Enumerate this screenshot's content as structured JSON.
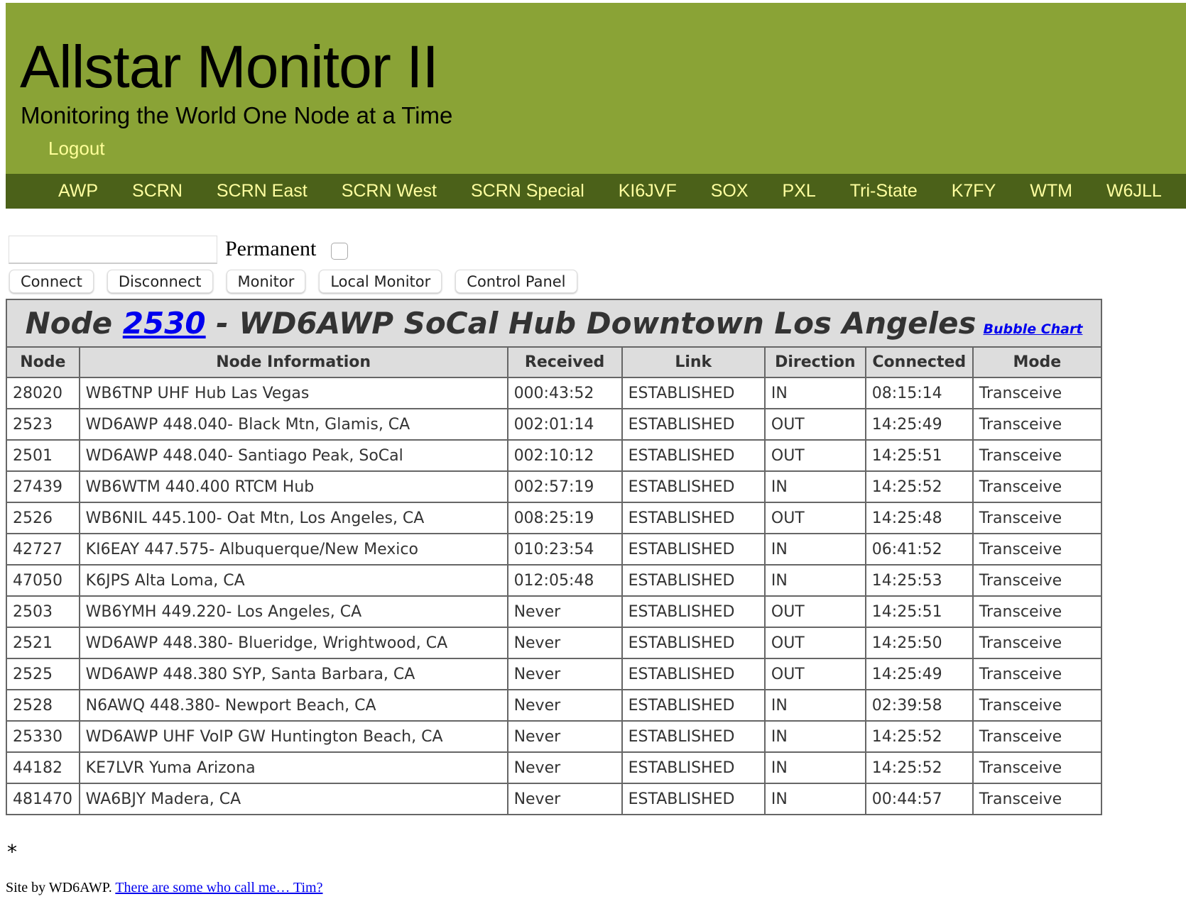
{
  "header": {
    "title": "Allstar Monitor II",
    "subtitle": "Monitoring the World One Node at a Time",
    "logout": "Logout",
    "bg": "#8aa336"
  },
  "nav": {
    "items": [
      "AWP",
      "SCRN",
      "SCRN East",
      "SCRN West",
      "SCRN Special",
      "KI6JVF",
      "SOX",
      "PXL",
      "Tri-State",
      "K7FY",
      "WTM",
      "W6JLL"
    ],
    "bg": "#4b6119"
  },
  "controls": {
    "node_input_value": "",
    "permanent_label": "Permanent",
    "permanent_checked": false,
    "buttons": [
      "Connect",
      "Disconnect",
      "Monitor",
      "Local Monitor",
      "Control Panel"
    ]
  },
  "table": {
    "caption_prefix": "Node ",
    "node_number": "2530",
    "caption_suffix": " - WD6AWP SoCal Hub Downtown Los Angeles",
    "bubble_chart": "Bubble Chart",
    "columns": [
      "Node",
      "Node Information",
      "Received",
      "Link",
      "Direction",
      "Connected",
      "Mode"
    ],
    "rows": [
      [
        "28020",
        "WB6TNP UHF Hub Las Vegas",
        "000:43:52",
        "ESTABLISHED",
        "IN",
        "08:15:14",
        "Transceive"
      ],
      [
        "2523",
        "WD6AWP 448.040- Black Mtn, Glamis, CA",
        "002:01:14",
        "ESTABLISHED",
        "OUT",
        "14:25:49",
        "Transceive"
      ],
      [
        "2501",
        "WD6AWP 448.040- Santiago Peak, SoCal",
        "002:10:12",
        "ESTABLISHED",
        "OUT",
        "14:25:51",
        "Transceive"
      ],
      [
        "27439",
        "WB6WTM 440.400 RTCM Hub",
        "002:57:19",
        "ESTABLISHED",
        "IN",
        "14:25:52",
        "Transceive"
      ],
      [
        "2526",
        "WB6NIL 445.100- Oat Mtn, Los Angeles, CA",
        "008:25:19",
        "ESTABLISHED",
        "OUT",
        "14:25:48",
        "Transceive"
      ],
      [
        "42727",
        "KI6EAY 447.575- Albuquerque/New Mexico",
        "010:23:54",
        "ESTABLISHED",
        "IN",
        "06:41:52",
        "Transceive"
      ],
      [
        "47050",
        "K6JPS Alta Loma, CA",
        "012:05:48",
        "ESTABLISHED",
        "IN",
        "14:25:53",
        "Transceive"
      ],
      [
        "2503",
        "WB6YMH 449.220- Los Angeles, CA",
        "Never",
        "ESTABLISHED",
        "OUT",
        "14:25:51",
        "Transceive"
      ],
      [
        "2521",
        "WD6AWP 448.380- Blueridge, Wrightwood, CA",
        "Never",
        "ESTABLISHED",
        "OUT",
        "14:25:50",
        "Transceive"
      ],
      [
        "2525",
        "WD6AWP 448.380 SYP, Santa Barbara, CA",
        "Never",
        "ESTABLISHED",
        "OUT",
        "14:25:49",
        "Transceive"
      ],
      [
        "2528",
        "N6AWQ 448.380- Newport Beach, CA",
        "Never",
        "ESTABLISHED",
        "IN",
        "02:39:58",
        "Transceive"
      ],
      [
        "25330",
        "WD6AWP UHF VoIP GW Huntington Beach, CA",
        "Never",
        "ESTABLISHED",
        "IN",
        "14:25:52",
        "Transceive"
      ],
      [
        "44182",
        "KE7LVR Yuma Arizona",
        "Never",
        "ESTABLISHED",
        "IN",
        "14:25:52",
        "Transceive"
      ],
      [
        "481470",
        "WA6BJY Madera, CA",
        "Never",
        "ESTABLISHED",
        "IN",
        "00:44:57",
        "Transceive"
      ]
    ]
  },
  "footer": {
    "asterisk": "*",
    "site_by": "Site by WD6AWP. ",
    "link": "There are some who call me… Tim?"
  }
}
